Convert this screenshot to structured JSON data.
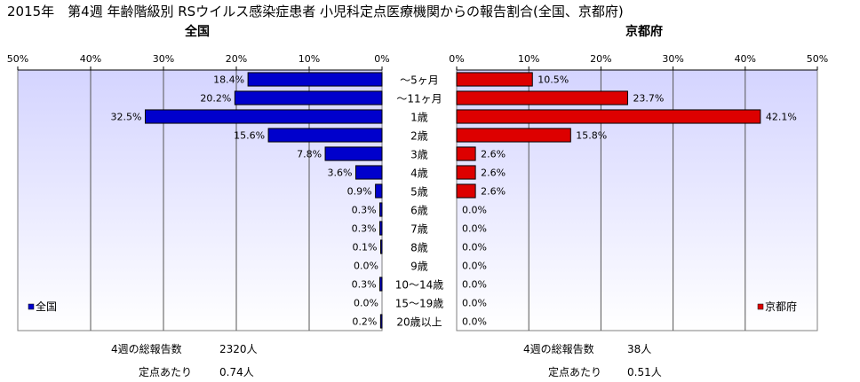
{
  "title": "2015年　第4週 年齢階級別 RSウイルス感染症患者 小児科定点医療機関からの報告割合(全国、京都府)",
  "colors": {
    "plot_bg_top": "#d4d4ff",
    "plot_bg_bottom": "#ffffff",
    "national_bar": "#0000cc",
    "kyoto_bar": "#dd0000",
    "gridline": "#555555"
  },
  "chart_data": [
    {
      "type": "bar",
      "orientation": "horizontal",
      "direction": "right-to-left",
      "title": "全国",
      "legend": "全国",
      "legend_position": "bottom-left",
      "xlim": [
        0,
        50
      ],
      "x_ticks": [
        "50%",
        "40%",
        "30%",
        "20%",
        "10%",
        "0%"
      ],
      "grid": true,
      "categories": [
        "～5ヶ月",
        "～11ヶ月",
        "1歳",
        "2歳",
        "3歳",
        "4歳",
        "5歳",
        "6歳",
        "7歳",
        "8歳",
        "9歳",
        "10～14歳",
        "15～19歳",
        "20歳以上"
      ],
      "values": [
        18.4,
        20.2,
        32.5,
        15.6,
        7.8,
        3.6,
        0.9,
        0.3,
        0.3,
        0.1,
        0.0,
        0.3,
        0.0,
        0.2
      ],
      "labels": [
        "18.4%",
        "20.2%",
        "32.5%",
        "15.6%",
        "7.8%",
        "3.6%",
        "0.9%",
        "0.3%",
        "0.3%",
        "0.1%",
        "0.0%",
        "0.3%",
        "0.0%",
        "0.2%"
      ]
    },
    {
      "type": "bar",
      "orientation": "horizontal",
      "direction": "left-to-right",
      "title": "京都府",
      "legend": "京都府",
      "legend_position": "bottom-right",
      "xlim": [
        0,
        50
      ],
      "x_ticks": [
        "0%",
        "10%",
        "20%",
        "30%",
        "40%",
        "50%"
      ],
      "grid": true,
      "categories": [
        "～5ヶ月",
        "～11ヶ月",
        "1歳",
        "2歳",
        "3歳",
        "4歳",
        "5歳",
        "6歳",
        "7歳",
        "8歳",
        "9歳",
        "10～14歳",
        "15～19歳",
        "20歳以上"
      ],
      "values": [
        10.5,
        23.7,
        42.1,
        15.8,
        2.6,
        2.6,
        2.6,
        0.0,
        0.0,
        0.0,
        0.0,
        0.0,
        0.0,
        0.0
      ],
      "labels": [
        "10.5%",
        "23.7%",
        "42.1%",
        "15.8%",
        "2.6%",
        "2.6%",
        "2.6%",
        "0.0%",
        "0.0%",
        "0.0%",
        "0.0%",
        "0.0%",
        "0.0%",
        "0.0%"
      ]
    }
  ],
  "footer": {
    "national": {
      "total_label": "4週の総報告数",
      "total_value": "2320人",
      "per_site_label": "定点あたり",
      "per_site_value": "0.74人"
    },
    "kyoto": {
      "total_label": "4週の総報告数",
      "total_value": "38人",
      "per_site_label": "定点あたり",
      "per_site_value": "0.51人"
    }
  }
}
